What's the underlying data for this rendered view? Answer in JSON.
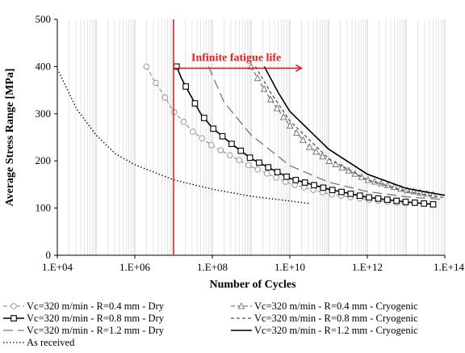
{
  "chart_data": {
    "type": "line",
    "title": "",
    "xlabel": "Number of Cycles",
    "ylabel": "Average Stress Range [MPa]",
    "x_scale": "log10",
    "xlim": [
      10000,
      100000000000000
    ],
    "ylim": [
      0,
      500
    ],
    "x_tick_labels": [
      "1.E+04",
      "1.E+06",
      "1.E+08",
      "1.E+10",
      "1.E+12",
      "1.E+14"
    ],
    "y_tick_labels": [
      "0",
      "100",
      "200",
      "300",
      "400",
      "500"
    ],
    "grid": "vertical minor gridlines on log scale",
    "legend_position": "below chart",
    "annotation": {
      "text": "Infinite fatigue life",
      "line_x": 10000000,
      "arrow_from_x": 10000000,
      "arrow_to_x": 20000000000,
      "arrow_y": 400,
      "color": "#e02020"
    },
    "series": [
      {
        "name": "Vc=320 m/min - R=0.4 mm - Dry",
        "style": "dashed",
        "marker": "circle",
        "color": "#9a9a9a",
        "x": [
          2000000,
          3200000,
          5000000,
          10000000,
          31600000,
          100000000,
          1000000000,
          10000000000,
          100000000000,
          1000000000000,
          10000000000000
        ],
        "y": [
          400,
          370,
          345,
          305,
          262,
          232,
          188,
          152,
          130,
          118,
          110
        ]
      },
      {
        "name": "Vc=320 m/min - R=0.8 mm - Dry",
        "style": "solid",
        "marker": "square",
        "color": "#000000",
        "x": [
          12000000,
          16000000,
          25000000,
          50000000,
          100000000,
          316000000,
          1000000000,
          10000000000,
          100000000000,
          1000000000000,
          10000000000000,
          50000000000000
        ],
        "y": [
          400,
          375,
          345,
          300,
          270,
          236,
          205,
          163,
          140,
          123,
          113,
          108
        ]
      },
      {
        "name": "Vc=320 m/min - R=1.2 mm - Dry",
        "style": "longdash",
        "marker": "none",
        "color": "#777777",
        "x": [
          80000000,
          200000000,
          1000000000,
          10000000000,
          100000000000,
          1000000000000,
          10000000000000,
          100000000000000
        ],
        "y": [
          400,
          325,
          255,
          190,
          155,
          135,
          124,
          118
        ]
      },
      {
        "name": "Vc=320 m/min - R=0.4 mm - Cryogenic",
        "style": "dashed",
        "marker": "triangle",
        "color": "#7a7a7a",
        "x": [
          1000000000,
          1600000000,
          3200000000,
          10000000000,
          31600000000,
          100000000000,
          1000000000000,
          10000000000000,
          50000000000000
        ],
        "y": [
          400,
          370,
          330,
          275,
          230,
          200,
          160,
          138,
          128
        ]
      },
      {
        "name": "Vc=320 m/min - R=0.8 mm - Cryogenic",
        "style": "shortdash",
        "marker": "none",
        "color": "#555555",
        "x": [
          1300000000,
          3200000000,
          10000000000,
          100000000000,
          1000000000000,
          10000000000000,
          100000000000000
        ],
        "y": [
          400,
          345,
          285,
          205,
          160,
          135,
          122
        ]
      },
      {
        "name": "Vc=320 m/min - R=1.2 mm - Cryogenic",
        "style": "solid",
        "marker": "none",
        "color": "#000000",
        "x": [
          2200000000,
          5000000000,
          10000000000,
          100000000000,
          1000000000000,
          10000000000000,
          100000000000000
        ],
        "y": [
          400,
          345,
          305,
          225,
          172,
          142,
          127
        ]
      },
      {
        "name": "As received",
        "style": "dotted",
        "marker": "none",
        "color": "#000000",
        "x": [
          10000,
          31600,
          100000,
          316000,
          1000000,
          10000000,
          100000000,
          1000000000,
          10000000000,
          31600000000
        ],
        "y": [
          395,
          310,
          255,
          215,
          192,
          160,
          140,
          125,
          115,
          110
        ]
      }
    ]
  }
}
